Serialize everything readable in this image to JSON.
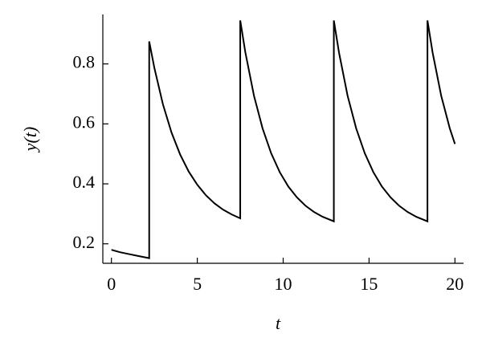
{
  "chart_data": {
    "type": "line",
    "x_label": "t",
    "y_label": "y(t)",
    "x": [
      0,
      0.5,
      1,
      1.5,
      2.2,
      2.2,
      2.5,
      3.0,
      3.5,
      4.0,
      4.5,
      5.0,
      5.5,
      6.0,
      6.5,
      7.0,
      7.5,
      7.5,
      7.8,
      8.3,
      8.8,
      9.3,
      9.8,
      10.3,
      10.8,
      11.3,
      11.8,
      12.3,
      12.95,
      12.95,
      13.25,
      13.75,
      14.25,
      14.75,
      15.25,
      15.75,
      16.25,
      16.75,
      17.25,
      17.75,
      18.4,
      18.4,
      18.7,
      19.2,
      19.7,
      20
    ],
    "values": [
      0.18,
      0.172,
      0.166,
      0.16,
      0.152,
      0.875,
      0.787,
      0.665,
      0.571,
      0.498,
      0.441,
      0.397,
      0.362,
      0.335,
      0.314,
      0.298,
      0.285,
      0.945,
      0.838,
      0.694,
      0.585,
      0.502,
      0.439,
      0.391,
      0.355,
      0.327,
      0.306,
      0.29,
      0.275,
      0.945,
      0.838,
      0.694,
      0.585,
      0.502,
      0.439,
      0.391,
      0.355,
      0.327,
      0.306,
      0.29,
      0.275,
      0.945,
      0.838,
      0.694,
      0.585,
      0.533
    ],
    "color": "#000000",
    "xlim": [
      -0.5,
      20.5
    ],
    "xticks": [
      0,
      5,
      10,
      15,
      20
    ],
    "ylim": [
      0.135,
      0.965
    ],
    "yticks": [
      0.2,
      0.4,
      0.6,
      0.8
    ]
  }
}
